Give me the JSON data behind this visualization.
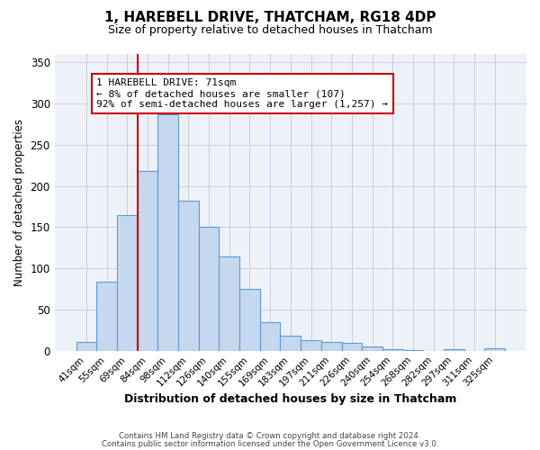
{
  "title": "1, HAREBELL DRIVE, THATCHAM, RG18 4DP",
  "subtitle": "Size of property relative to detached houses in Thatcham",
  "xlabel": "Distribution of detached houses by size in Thatcham",
  "ylabel": "Number of detached properties",
  "bar_labels": [
    "41sqm",
    "55sqm",
    "69sqm",
    "84sqm",
    "98sqm",
    "112sqm",
    "126sqm",
    "140sqm",
    "155sqm",
    "169sqm",
    "183sqm",
    "197sqm",
    "211sqm",
    "226sqm",
    "240sqm",
    "254sqm",
    "268sqm",
    "282sqm",
    "297sqm",
    "311sqm",
    "325sqm"
  ],
  "bar_values": [
    11,
    84,
    165,
    218,
    287,
    182,
    150,
    114,
    75,
    35,
    18,
    13,
    11,
    9,
    5,
    2,
    1,
    0,
    2,
    0,
    3
  ],
  "bar_color": "#c5d8f0",
  "bar_edge_color": "#5b9bd5",
  "vline_color": "#cc0000",
  "vline_pos": 2.5,
  "annotation_title": "1 HAREBELL DRIVE: 71sqm",
  "annotation_line1": "← 8% of detached houses are smaller (107)",
  "annotation_line2": "92% of semi-detached houses are larger (1,257) →",
  "annotation_box_facecolor": "#ffffff",
  "annotation_box_edgecolor": "#cc0000",
  "ylim": [
    0,
    360
  ],
  "yticks": [
    0,
    50,
    100,
    150,
    200,
    250,
    300,
    350
  ],
  "footer1": "Contains HM Land Registry data © Crown copyright and database right 2024.",
  "footer2": "Contains public sector information licensed under the Open Government Licence v3.0."
}
